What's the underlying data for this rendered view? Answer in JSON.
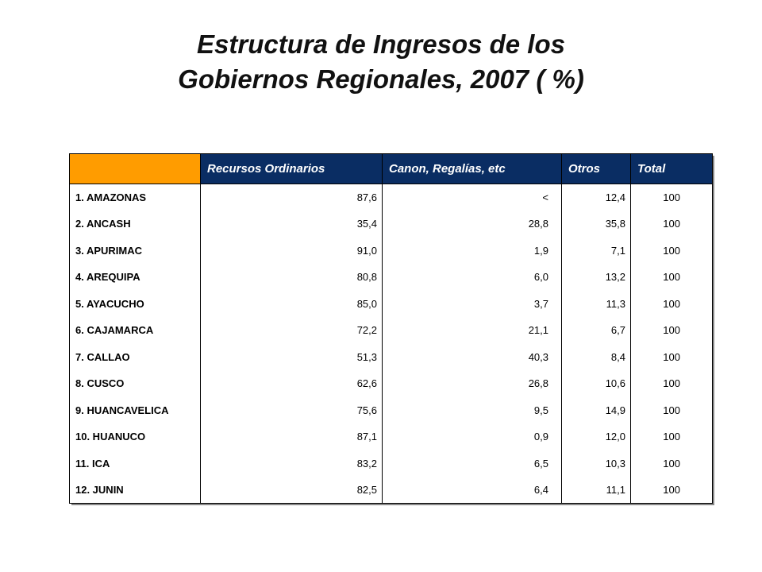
{
  "title": {
    "line1": "Estructura de Ingresos de los",
    "line2": "Gobiernos Regionales, 2007 ( %)"
  },
  "table": {
    "headers": [
      "",
      "Recursos Ordinarios",
      "Canon, Regalías, etc",
      "Otros",
      "Total"
    ],
    "rows": [
      [
        "1. AMAZONAS",
        "87,6",
        "<",
        "12,4",
        "100"
      ],
      [
        "2. ANCASH",
        "35,4",
        "28,8",
        "35,8",
        "100"
      ],
      [
        "3. APURIMAC",
        "91,0",
        "1,9",
        "7,1",
        "100"
      ],
      [
        "4. AREQUIPA",
        "80,8",
        "6,0",
        "13,2",
        "100"
      ],
      [
        "5. AYACUCHO",
        "85,0",
        "3,7",
        "11,3",
        "100"
      ],
      [
        "6. CAJAMARCA",
        "72,2",
        "21,1",
        "6,7",
        "100"
      ],
      [
        "7. CALLAO",
        "51,3",
        "40,3",
        "8,4",
        "100"
      ],
      [
        "8. CUSCO",
        "62,6",
        "26,8",
        "10,6",
        "100"
      ],
      [
        "9. HUANCAVELICA",
        "75,6",
        "9,5",
        "14,9",
        "100"
      ],
      [
        "10. HUANUCO",
        "87,1",
        "0,9",
        "12,0",
        "100"
      ],
      [
        "11. ICA",
        "83,2",
        "6,5",
        "10,3",
        "100"
      ],
      [
        "12. JUNIN",
        "82,5",
        "6,4",
        "11,1",
        "100"
      ]
    ]
  },
  "colors": {
    "header_bg": "#0a2d63",
    "corner_bg": "#ff9c00",
    "header_text": "#ffffff"
  }
}
